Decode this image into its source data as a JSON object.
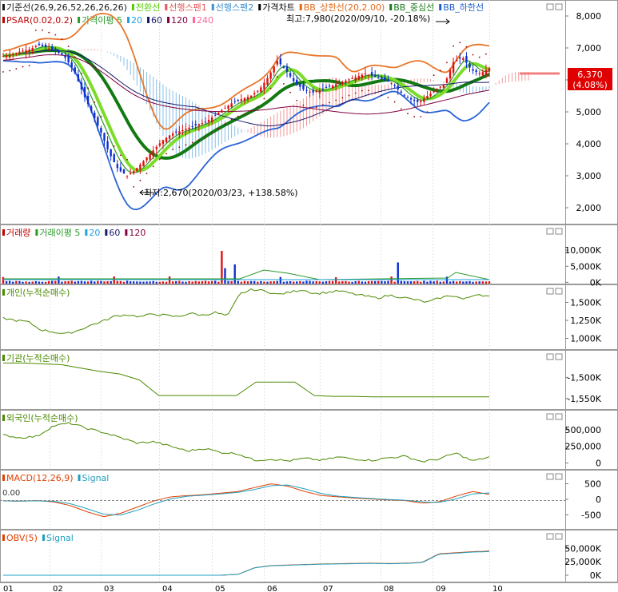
{
  "panels": [
    {
      "id": "price",
      "legend": [
        {
          "text": "기준선(26,9,26,52,26,26,26)",
          "color": "#1a1a1a"
        },
        {
          "text": "전환선",
          "color": "#55cc00"
        },
        {
          "text": "선행스팬1",
          "color": "#e05a5a"
        },
        {
          "text": "선행스팬2",
          "color": "#3b8fd0"
        },
        {
          "text": "가격차트",
          "color": "#000000"
        },
        {
          "text": "BB_상한선(20,2.00)",
          "color": "#e06a1a"
        },
        {
          "text": "BB_중심선",
          "color": "#1b7a1b"
        },
        {
          "text": "BB_하한선",
          "color": "#1f5fcc"
        }
      ],
      "legend2": [
        {
          "text": "PSAR(0.02,0.2)",
          "color": "#c00000"
        },
        {
          "text": "가격이평 5",
          "color": "#2a9a2a"
        },
        {
          "text": "20",
          "color": "#1f9fdf"
        },
        {
          "text": "60",
          "color": "#1a1a6a"
        },
        {
          "text": "120",
          "color": "#800040"
        },
        {
          "text": "240",
          "color": "#ff6699"
        }
      ]
    },
    {
      "id": "volume",
      "legend": [
        {
          "text": "거래량",
          "color": "#c00000"
        },
        {
          "text": "거래이평 5",
          "color": "#2a9a2a"
        },
        {
          "text": "20",
          "color": "#1f9fdf"
        },
        {
          "text": "60",
          "color": "#1a1a6a"
        },
        {
          "text": "120",
          "color": "#800040"
        }
      ]
    },
    {
      "id": "individual",
      "legend": [
        {
          "text": "개인(누적순매수)",
          "color": "#4a8a00"
        }
      ]
    },
    {
      "id": "institution",
      "legend": [
        {
          "text": "기관(누적순매수)",
          "color": "#4a8a00"
        }
      ]
    },
    {
      "id": "foreign",
      "legend": [
        {
          "text": "외국인(누적순매수)",
          "color": "#4a8a00"
        }
      ]
    },
    {
      "id": "macd",
      "legend": [
        {
          "text": "MACD(12,26,9)",
          "color": "#e04000"
        },
        {
          "text": "Signal",
          "color": "#20a0c0"
        }
      ]
    },
    {
      "id": "obv",
      "legend": [
        {
          "text": "OBV(5)",
          "color": "#e04000"
        },
        {
          "text": "Signal",
          "color": "#20a0c0"
        }
      ]
    }
  ],
  "annotations": {
    "high": "최고:7,980(2020/09/10, -20.18%)",
    "low": "최저:2,670(2020/03/23, +138.58%)",
    "current_price": "6,370",
    "current_change": "(4.08%)",
    "macd_zero": "0.00"
  },
  "chart_data": [
    {
      "type": "candlestick",
      "title": "",
      "ylim": [
        1500,
        8500
      ],
      "y_ticks": [
        "8,000",
        "7,000",
        "6,000",
        "5,000",
        "4,000",
        "3,000",
        "2,000"
      ],
      "y_tick_values": [
        8000,
        7000,
        6000,
        5000,
        4000,
        3000,
        2000
      ],
      "x_ticks": [
        "01",
        "02",
        "03",
        "04",
        "05",
        "06",
        "07",
        "08",
        "09",
        "10"
      ],
      "close": [
        6750,
        6800,
        6900,
        6950,
        7100,
        7000,
        6900,
        6700,
        6300,
        5600,
        5000,
        4400,
        3700,
        3200,
        3000,
        3200,
        3500,
        3800,
        4100,
        4300,
        4400,
        4500,
        4600,
        4700,
        4900,
        5100,
        5300,
        5400,
        5500,
        5700,
        6100,
        6600,
        6300,
        5900,
        5700,
        5600,
        5700,
        5800,
        5900,
        6000,
        6100,
        6200,
        6100,
        6000,
        5900,
        5600,
        5400,
        5300,
        5500,
        5700,
        5900,
        6600,
        6700,
        6300,
        6200,
        6370
      ]
    },
    {
      "type": "bar",
      "title": "거래량",
      "y_ticks": [
        "10,000K",
        "5,000K",
        "0K"
      ],
      "y_tick_values": [
        10000,
        5000,
        0
      ]
    },
    {
      "type": "line",
      "title": "개인(누적순매수)",
      "y_ticks": [
        "1,500K",
        "1,250K",
        "1,000K"
      ],
      "y_tick_values": [
        1500,
        1250,
        1000
      ]
    },
    {
      "type": "line",
      "title": "기관(누적순매수)",
      "y_ticks": [
        "-1,500K",
        "-1,550K"
      ],
      "y_tick_values": [
        -1500,
        -1550
      ]
    },
    {
      "type": "line",
      "title": "외국인(누적순매수)",
      "y_ticks": [
        "500,000",
        "250,000",
        "0"
      ],
      "y_tick_values": [
        500000,
        250000,
        0
      ]
    },
    {
      "type": "line",
      "title": "MACD(12,26,9)",
      "y_ticks": [
        "500",
        "0",
        "-500"
      ],
      "y_tick_values": [
        500,
        0,
        -500
      ]
    },
    {
      "type": "line",
      "title": "OBV(5)",
      "y_ticks": [
        "50,000K",
        "25,000K",
        "0K"
      ],
      "y_tick_values": [
        50000,
        25000,
        0
      ]
    }
  ]
}
